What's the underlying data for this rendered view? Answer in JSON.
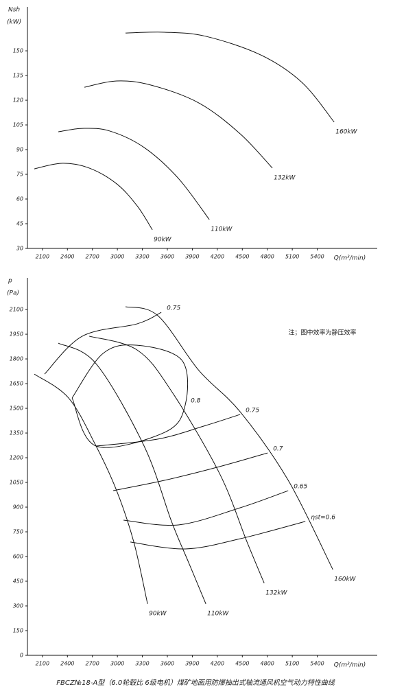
{
  "chart_data": [
    {
      "type": "line",
      "y_label": "Nsh",
      "y_unit": "(kW)",
      "x_label": "Q(m³/min)",
      "xlim": [
        1920,
        6120
      ],
      "ylim": [
        30,
        176.7
      ],
      "xticks": [
        2100,
        2400,
        2700,
        3000,
        3300,
        3600,
        3900,
        4200,
        4500,
        4800,
        5100,
        5400
      ],
      "yticks": [
        30,
        45,
        60,
        75,
        90,
        105,
        120,
        135,
        150
      ],
      "color": "#111111",
      "series": [
        {
          "name": "90kW",
          "x": [
            2002,
            2332,
            2662,
            2992,
            3238,
            3420
          ],
          "values": [
            78.3,
            81.7,
            78.8,
            69.2,
            55.8,
            41.3
          ]
        },
        {
          "name": "110kW",
          "x": [
            2291,
            2579,
            2909,
            3321,
            3733,
            4104
          ],
          "values": [
            100.8,
            102.9,
            101.3,
            91.3,
            72.5,
            47.5
          ]
        },
        {
          "name": "132kW",
          "x": [
            2604,
            2991,
            3403,
            3980,
            4474,
            4861
          ],
          "values": [
            127.9,
            131.7,
            129.2,
            118.3,
            99.6,
            78.8
          ]
        },
        {
          "name": "160kW",
          "x": [
            3098,
            3568,
            4062,
            4721,
            5216,
            5603
          ],
          "values": [
            160.8,
            161.3,
            158.8,
            147.5,
            130.8,
            106.7
          ]
        }
      ]
    },
    {
      "type": "line",
      "y_label": "p",
      "y_unit": "(Pa)",
      "x_label": "Q(m³/min)",
      "note": "注；图中效率为静压效率",
      "xlim": [
        1920,
        6120
      ],
      "ylim": [
        0,
        2292
      ],
      "xticks": [
        2100,
        2400,
        2700,
        3000,
        3300,
        3600,
        3900,
        4200,
        4500,
        4800,
        5100,
        5400
      ],
      "yticks": [
        0,
        150,
        300,
        450,
        600,
        750,
        900,
        1050,
        1200,
        1350,
        1500,
        1650,
        1800,
        1950,
        2100
      ],
      "color": "#111111",
      "series": [
        {
          "name": "90kW",
          "x": [
            2002,
            2414,
            2744,
            2991,
            3197,
            3362
          ],
          "values": [
            1708,
            1563,
            1271,
            1000,
            688,
            313
          ]
        },
        {
          "name": "110kW",
          "x": [
            2291,
            2744,
            3321,
            3650,
            3856,
            4062
          ],
          "values": [
            1896,
            1771,
            1271,
            813,
            563,
            313
          ]
        },
        {
          "name": "132kW",
          "x": [
            2662,
            3238,
            3650,
            4227,
            4557,
            4763
          ],
          "values": [
            1938,
            1854,
            1604,
            1104,
            688,
            438
          ]
        },
        {
          "name": "160kW",
          "x": [
            3098,
            3486,
            3980,
            4474,
            5051,
            5587
          ],
          "values": [
            2117,
            2063,
            1729,
            1479,
            1063,
            521
          ]
        }
      ],
      "efficiency_lines": [
        {
          "name": "0.75",
          "x": [
            2126,
            2579,
            3238,
            3527
          ],
          "values": [
            1708,
            1938,
            2013,
            2083
          ]
        },
        {
          "name": "0.8",
          "x": [
            2456,
            2827,
            3238,
            3774,
            3815,
            3568,
            2744,
            2456
          ],
          "values": [
            1563,
            1833,
            1883,
            1792,
            1521,
            1354,
            1271,
            1563
          ]
        },
        {
          "name": "0.75",
          "x": [
            2744,
            3486,
            4062,
            4474
          ],
          "values": [
            1271,
            1313,
            1396,
            1463
          ]
        },
        {
          "name": "0.7",
          "x": [
            2950,
            3568,
            4227,
            4804
          ],
          "values": [
            1000,
            1063,
            1146,
            1229
          ]
        },
        {
          "name": "0.65",
          "x": [
            3074,
            3733,
            4474,
            5051
          ],
          "values": [
            821,
            792,
            896,
            1000
          ]
        },
        {
          "name": "ηst=0.6",
          "x": [
            3156,
            3815,
            4474,
            5257
          ],
          "values": [
            688,
            646,
            708,
            813
          ]
        }
      ]
    }
  ],
  "caption": "FBCZ№18-A型（6.0轮毂比 6级电机）煤矿地面用防爆抽出式轴流通风机空气动力特性曲线"
}
